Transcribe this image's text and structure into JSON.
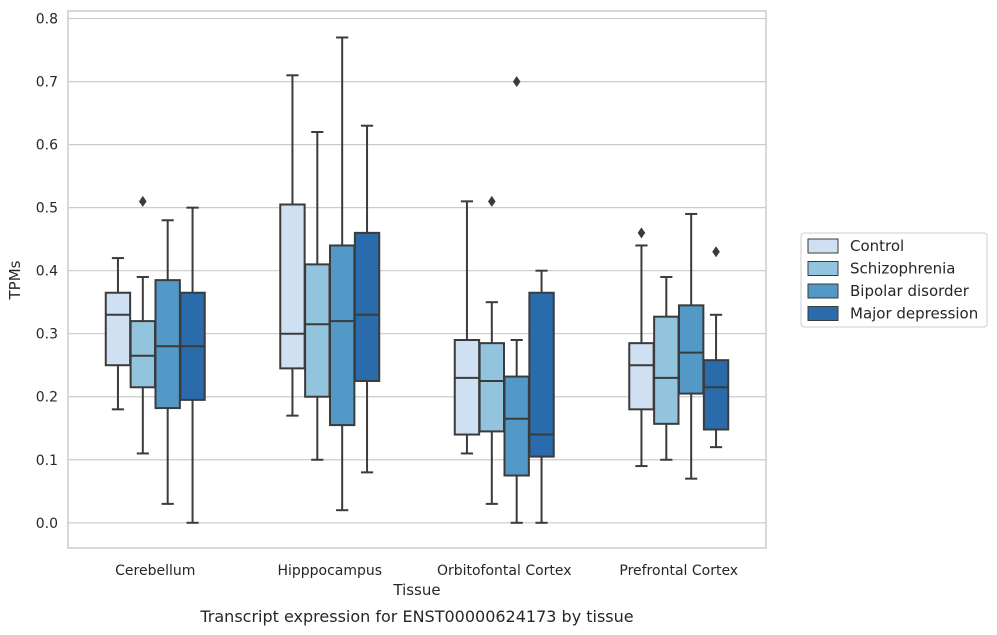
{
  "caption": "Transcript expression for ENST00000624173 by tissue",
  "chart_data": {
    "type": "boxplot",
    "title": "",
    "xlabel": "Tissue",
    "ylabel": "TPMs",
    "ylim": [
      -0.04,
      0.812
    ],
    "yticks": [
      "0.0",
      "0.1",
      "0.2",
      "0.3",
      "0.4",
      "0.5",
      "0.6",
      "0.7",
      "0.8"
    ],
    "grid": "horizontal",
    "legend_position": "right",
    "categories": [
      "Cerebellum",
      "Hipppocampus",
      "Orbitofontal Cortex",
      "Prefrontal Cortex"
    ],
    "series": [
      {
        "name": "Control",
        "color": "#cfe0f2",
        "boxes": [
          {
            "whisker_low": 0.18,
            "q1": 0.25,
            "median": 0.33,
            "q3": 0.365,
            "whisker_high": 0.42,
            "outliers": []
          },
          {
            "whisker_low": 0.17,
            "q1": 0.245,
            "median": 0.3,
            "q3": 0.505,
            "whisker_high": 0.71,
            "outliers": []
          },
          {
            "whisker_low": 0.11,
            "q1": 0.14,
            "median": 0.23,
            "q3": 0.29,
            "whisker_high": 0.51,
            "outliers": []
          },
          {
            "whisker_low": 0.09,
            "q1": 0.18,
            "median": 0.25,
            "q3": 0.285,
            "whisker_high": 0.44,
            "outliers": [
              0.46
            ]
          }
        ]
      },
      {
        "name": "Schizophrenia",
        "color": "#93c4de",
        "boxes": [
          {
            "whisker_low": 0.11,
            "q1": 0.215,
            "median": 0.265,
            "q3": 0.32,
            "whisker_high": 0.39,
            "outliers": [
              0.51
            ]
          },
          {
            "whisker_low": 0.1,
            "q1": 0.2,
            "median": 0.315,
            "q3": 0.41,
            "whisker_high": 0.62,
            "outliers": []
          },
          {
            "whisker_low": 0.03,
            "q1": 0.145,
            "median": 0.225,
            "q3": 0.285,
            "whisker_high": 0.35,
            "outliers": [
              0.51
            ]
          },
          {
            "whisker_low": 0.1,
            "q1": 0.157,
            "median": 0.23,
            "q3": 0.327,
            "whisker_high": 0.39,
            "outliers": []
          }
        ]
      },
      {
        "name": "Bipolar disorder",
        "color": "#5299c8",
        "boxes": [
          {
            "whisker_low": 0.03,
            "q1": 0.182,
            "median": 0.28,
            "q3": 0.385,
            "whisker_high": 0.48,
            "outliers": []
          },
          {
            "whisker_low": 0.02,
            "q1": 0.155,
            "median": 0.32,
            "q3": 0.44,
            "whisker_high": 0.77,
            "outliers": []
          },
          {
            "whisker_low": 0.0,
            "q1": 0.075,
            "median": 0.165,
            "q3": 0.232,
            "whisker_high": 0.29,
            "outliers": [
              0.7
            ]
          },
          {
            "whisker_low": 0.07,
            "q1": 0.205,
            "median": 0.27,
            "q3": 0.345,
            "whisker_high": 0.49,
            "outliers": []
          }
        ]
      },
      {
        "name": "Major depression",
        "color": "#2a6cab",
        "boxes": [
          {
            "whisker_low": 0.0,
            "q1": 0.195,
            "median": 0.28,
            "q3": 0.365,
            "whisker_high": 0.5,
            "outliers": []
          },
          {
            "whisker_low": 0.08,
            "q1": 0.225,
            "median": 0.33,
            "q3": 0.46,
            "whisker_high": 0.63,
            "outliers": []
          },
          {
            "whisker_low": 0.0,
            "q1": 0.105,
            "median": 0.14,
            "q3": 0.365,
            "whisker_high": 0.4,
            "outliers": []
          },
          {
            "whisker_low": 0.12,
            "q1": 0.148,
            "median": 0.215,
            "q3": 0.258,
            "whisker_high": 0.33,
            "outliers": [
              0.43
            ]
          }
        ]
      }
    ]
  }
}
